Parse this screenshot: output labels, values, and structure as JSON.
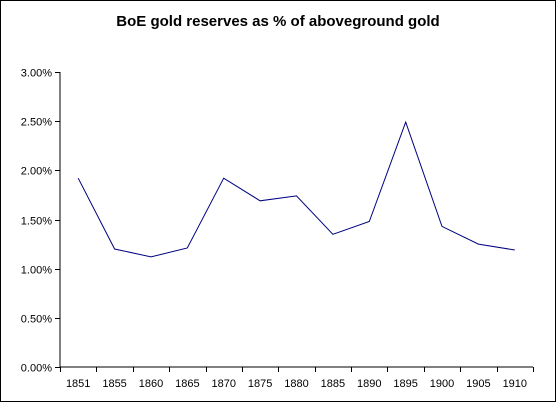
{
  "chart_data": {
    "type": "line",
    "title": "BoE gold reserves as % of aboveground gold",
    "xlabel": "",
    "ylabel": "",
    "categories": [
      "1851",
      "1855",
      "1860",
      "1865",
      "1870",
      "1875",
      "1880",
      "1885",
      "1890",
      "1895",
      "1900",
      "1905",
      "1910"
    ],
    "series": [
      {
        "values": [
          1.92,
          1.2,
          1.12,
          1.21,
          1.92,
          1.69,
          1.74,
          1.35,
          1.48,
          2.49,
          1.43,
          1.25,
          1.19
        ]
      }
    ],
    "ylim": [
      0,
      3.0
    ],
    "yticks": [
      0,
      0.5,
      1.0,
      1.5,
      2.0,
      2.5,
      3.0
    ],
    "ytick_labels": [
      "0.00%",
      "0.50%",
      "1.00%",
      "1.50%",
      "2.00%",
      "2.50%",
      "3.00%"
    ],
    "grid": false,
    "line_color": "#000080"
  }
}
